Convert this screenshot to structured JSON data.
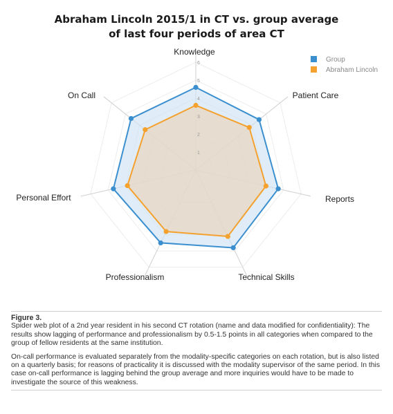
{
  "chart_data": {
    "type": "radar",
    "title_lines": [
      "Abraham Lincoln 2015/1 in CT vs. group average",
      "of last four periods of area CT"
    ],
    "axes": [
      "Knowledge",
      "Patient Care",
      "Reports",
      "Technical Skills",
      "Professionalism",
      "Personal Effort",
      "On Call"
    ],
    "scale_ticks": [
      "1",
      "2",
      "3",
      "4",
      "5",
      "6"
    ],
    "rmax": 6,
    "series": [
      {
        "name": "Group",
        "color": "#3b8fcf",
        "fill": "#cfe3f5",
        "values": [
          4.6,
          4.5,
          4.7,
          4.8,
          4.5,
          4.7,
          4.6
        ]
      },
      {
        "name": "Abraham Lincoln",
        "color": "#f4a12e",
        "fill": "#e8d6c2",
        "values": [
          3.6,
          3.8,
          4.0,
          4.1,
          3.8,
          3.9,
          3.6
        ]
      }
    ],
    "legend_position": "top-right",
    "grid": true
  },
  "caption": {
    "figure_label": "Figure 3.",
    "paragraph1": "Spider web plot of a 2nd year resident in his second CT rotation (name and data modified for confidentiality): The results show lagging of performance and professionalism by 0.5-1.5 points in all categories when compared to the group of fellow residents at the same institution.",
    "paragraph2": "On-call performance is evaluated separately from the modality-specific categories on each rotation, but is also listed on a quarterly basis; for reasons of practicality it is discussed with the modality supervisor of the same period. In this case on-call performance is lagging behind the group average and more inquiries would have to be made to investigate the source of this weakness."
  }
}
